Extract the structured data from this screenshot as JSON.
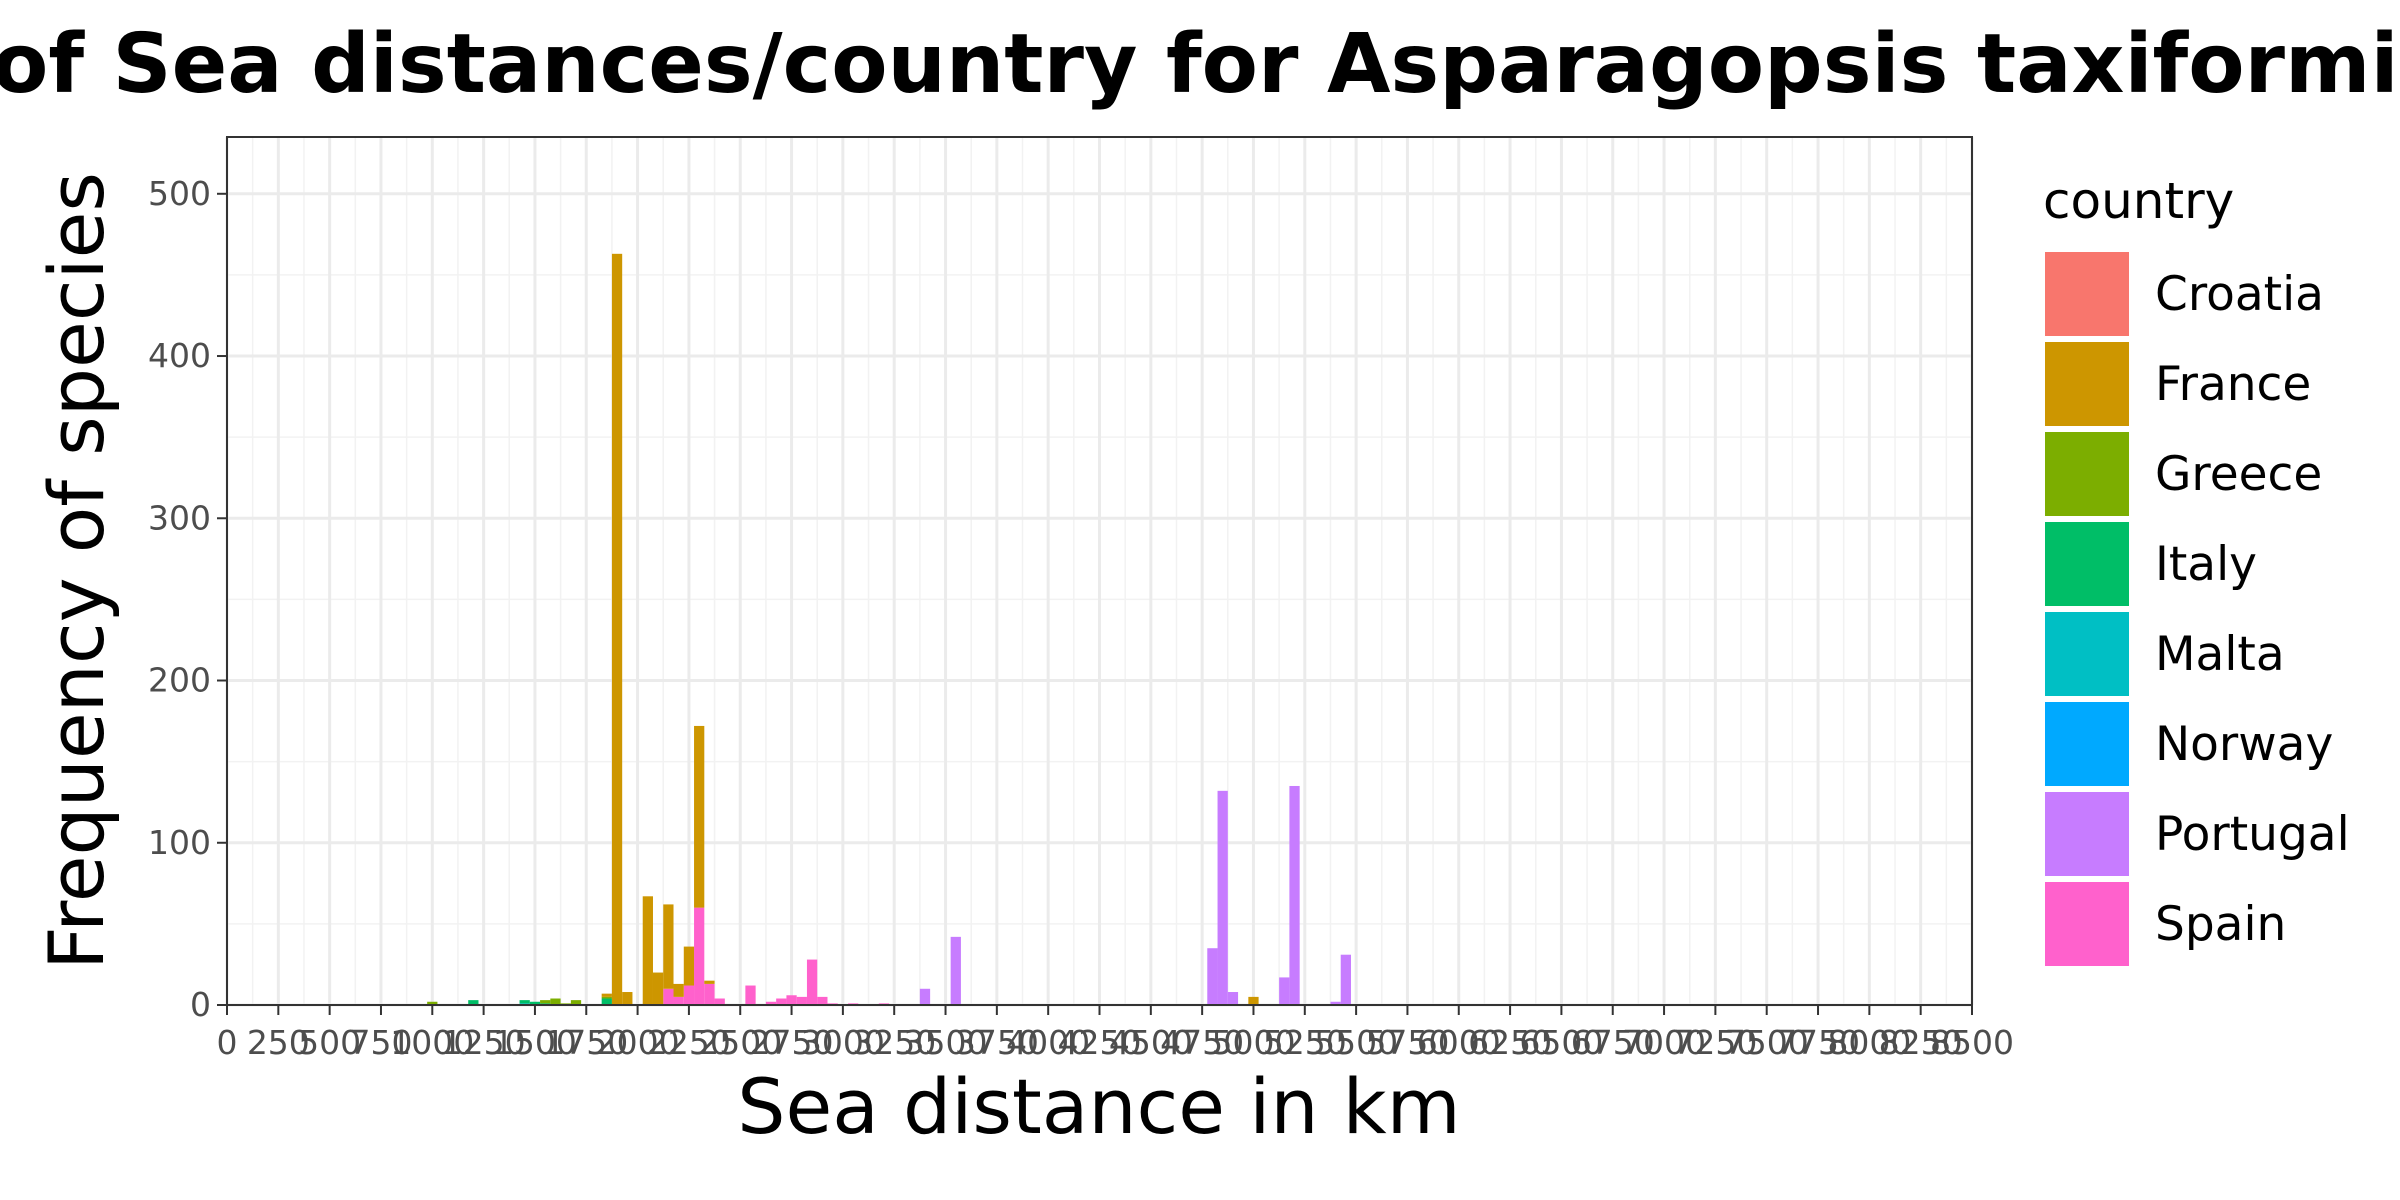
{
  "chart_data": {
    "type": "bar",
    "stacked": true,
    "title": "of Sea distances/country for Asparagopsis taxiformis in Gulf",
    "xlabel": "Sea distance in km",
    "ylabel": "Frequency of species",
    "xlim": [
      0,
      8500
    ],
    "ylim": [
      0,
      535
    ],
    "bin_width": 50,
    "x_ticks": [
      0,
      250,
      500,
      750,
      1000,
      1250,
      1500,
      1750,
      2000,
      2250,
      2500,
      2750,
      3000,
      3250,
      3500,
      3750,
      4000,
      4250,
      4500,
      4750,
      5000,
      5250,
      5500,
      5750,
      6000,
      6250,
      6500,
      6750,
      7000,
      7250,
      7500,
      7750,
      8000,
      8250,
      8500
    ],
    "y_ticks": [
      0,
      100,
      200,
      300,
      400,
      500
    ],
    "grid": true,
    "legend_title": "country",
    "legend_position": "right",
    "series": [
      {
        "name": "Croatia",
        "color": "#F8766D",
        "points": []
      },
      {
        "name": "France",
        "color": "#CD9600",
        "points": [
          [
            1850,
            2
          ],
          [
            1900,
            463
          ],
          [
            1950,
            8
          ],
          [
            2050,
            67
          ],
          [
            2100,
            20
          ],
          [
            2150,
            52
          ],
          [
            2200,
            8
          ],
          [
            2250,
            24
          ],
          [
            2300,
            112
          ],
          [
            2350,
            2
          ],
          [
            5000,
            5
          ]
        ]
      },
      {
        "name": "Greece",
        "color": "#7CAE00",
        "points": [
          [
            1000,
            2
          ],
          [
            1550,
            2
          ],
          [
            1600,
            4
          ],
          [
            1650,
            1
          ],
          [
            1700,
            3
          ],
          [
            1850,
            1
          ]
        ]
      },
      {
        "name": "Italy",
        "color": "#00BE67",
        "points": [
          [
            1200,
            3
          ],
          [
            1450,
            2
          ],
          [
            1500,
            2
          ],
          [
            1550,
            1
          ],
          [
            1850,
            4
          ]
        ]
      },
      {
        "name": "Malta",
        "color": "#00BFC4",
        "points": [
          [
            1450,
            1
          ]
        ]
      },
      {
        "name": "Norway",
        "color": "#00A9FF",
        "points": []
      },
      {
        "name": "Portugal",
        "color": "#C77CFF",
        "points": [
          [
            3400,
            10
          ],
          [
            3550,
            42
          ],
          [
            4800,
            35
          ],
          [
            4850,
            132
          ],
          [
            4900,
            8
          ],
          [
            5150,
            17
          ],
          [
            5200,
            135
          ],
          [
            5400,
            2
          ],
          [
            5450,
            31
          ]
        ]
      },
      {
        "name": "Spain",
        "color": "#FF61CC",
        "points": [
          [
            2150,
            10
          ],
          [
            2200,
            5
          ],
          [
            2250,
            12
          ],
          [
            2300,
            60
          ],
          [
            2350,
            13
          ],
          [
            2400,
            4
          ],
          [
            2550,
            12
          ],
          [
            2650,
            2
          ],
          [
            2700,
            4
          ],
          [
            2750,
            6
          ],
          [
            2800,
            5
          ],
          [
            2850,
            28
          ],
          [
            2900,
            5
          ],
          [
            2950,
            1
          ],
          [
            3050,
            1
          ],
          [
            3200,
            1
          ]
        ]
      }
    ]
  }
}
